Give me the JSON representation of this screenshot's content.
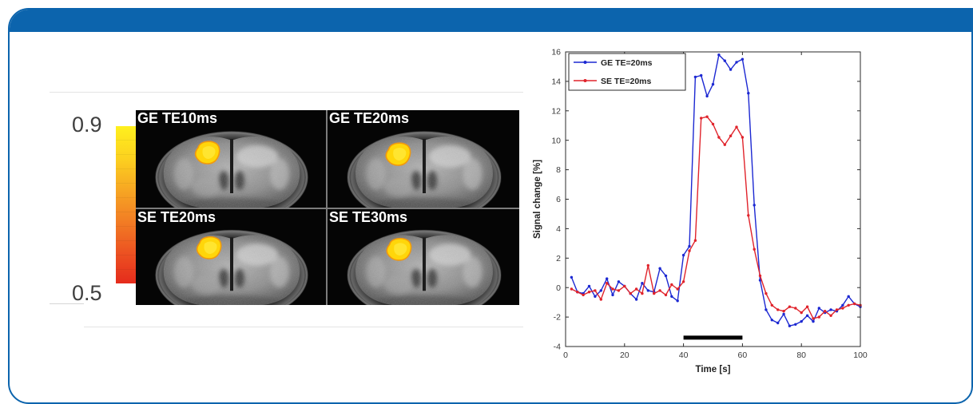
{
  "frame": {
    "accent_color": "#0c64ad"
  },
  "colorbar": {
    "max_label": "0.9",
    "min_label": "0.5",
    "colors": [
      "#fff01e",
      "#fcd21f",
      "#f7a823",
      "#f27e24",
      "#ec5322",
      "#e52c1c"
    ]
  },
  "mri_panel": {
    "cells": [
      {
        "label": "GE TE10ms"
      },
      {
        "label": "GE TE20ms"
      },
      {
        "label": "SE TE20ms"
      },
      {
        "label": "SE TE30ms"
      }
    ]
  },
  "chart_data": {
    "type": "line",
    "x": [
      2,
      4,
      6,
      8,
      10,
      12,
      14,
      16,
      18,
      20,
      22,
      24,
      26,
      28,
      30,
      32,
      34,
      36,
      38,
      40,
      42,
      44,
      46,
      48,
      50,
      52,
      54,
      56,
      58,
      60,
      62,
      64,
      66,
      68,
      70,
      72,
      74,
      76,
      78,
      80,
      82,
      84,
      86,
      88,
      90,
      92,
      94,
      96,
      98,
      100
    ],
    "series": [
      {
        "name": "GE TE=20ms",
        "color": "#1c28d2",
        "values": [
          0.7,
          -0.3,
          -0.4,
          0.1,
          -0.6,
          -0.2,
          0.6,
          -0.5,
          0.4,
          0.1,
          -0.4,
          -0.8,
          0.3,
          -0.2,
          -0.3,
          1.3,
          0.8,
          -0.6,
          -0.9,
          2.2,
          2.8,
          14.3,
          14.4,
          13.0,
          13.8,
          15.8,
          15.4,
          14.8,
          15.3,
          15.5,
          13.2,
          5.6,
          0.5,
          -1.5,
          -2.2,
          -2.4,
          -1.8,
          -2.6,
          -2.5,
          -2.3,
          -1.9,
          -2.3,
          -1.4,
          -1.7,
          -1.5,
          -1.6,
          -1.2,
          -0.6,
          -1.1,
          -1.3
        ]
      },
      {
        "name": "SE TE=20ms",
        "color": "#e0232b",
        "values": [
          -0.1,
          -0.3,
          -0.5,
          -0.3,
          -0.2,
          -0.8,
          0.3,
          -0.1,
          -0.2,
          0.1,
          -0.4,
          -0.1,
          -0.4,
          1.5,
          -0.4,
          -0.2,
          -0.5,
          0.2,
          -0.1,
          0.4,
          2.5,
          3.2,
          11.5,
          11.6,
          11.1,
          10.2,
          9.7,
          10.3,
          10.9,
          10.2,
          4.9,
          2.6,
          0.8,
          -0.4,
          -1.2,
          -1.5,
          -1.6,
          -1.3,
          -1.4,
          -1.7,
          -1.3,
          -2.1,
          -2.0,
          -1.6,
          -1.9,
          -1.5,
          -1.4,
          -1.2,
          -1.1,
          -1.2
        ]
      }
    ],
    "xlabel": "Time [s]",
    "ylabel": "Signal change [%]",
    "xlim": [
      0,
      100
    ],
    "ylim": [
      -4,
      16
    ],
    "x_ticks": [
      0,
      20,
      40,
      60,
      80,
      100
    ],
    "y_ticks": [
      -4,
      -2,
      0,
      2,
      4,
      6,
      8,
      10,
      12,
      14,
      16
    ],
    "grid": false,
    "legend": "top-left",
    "bar_annotation": {
      "x_start": 40,
      "x_end": 60,
      "y": -3.4,
      "color": "#000000"
    }
  }
}
